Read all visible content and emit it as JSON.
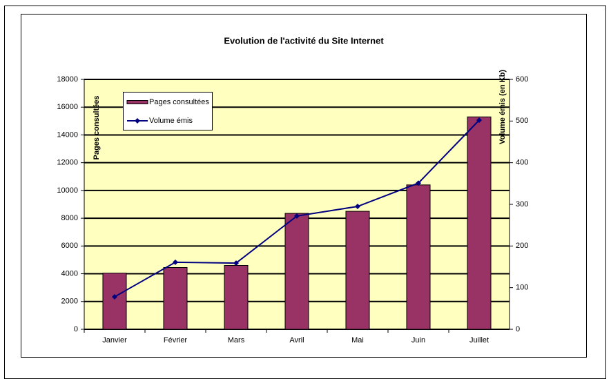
{
  "chart_data": {
    "type": "bar-line",
    "title": "Evolution de l'activité du Site Internet",
    "categories": [
      "Janvier",
      "Février",
      "Mars",
      "Avril",
      "Mai",
      "Juin",
      "Juillet"
    ],
    "series": [
      {
        "name": "Pages consultées",
        "type": "bar",
        "color": "#993366",
        "values": [
          4050,
          4450,
          4600,
          8350,
          8500,
          10400,
          15300
        ]
      },
      {
        "name": "Volume émis",
        "type": "line",
        "axis": "y2",
        "color": "#000080",
        "values": [
          78,
          161,
          159,
          272,
          295,
          351,
          502
        ]
      }
    ],
    "ylabel": "Pages consultées",
    "y2label": "Volume émis (en Kb)",
    "ylim": [
      0,
      18000
    ],
    "yticks": [
      0,
      2000,
      4000,
      6000,
      8000,
      10000,
      12000,
      14000,
      16000,
      18000
    ],
    "y2lim": [
      0,
      600
    ],
    "y2ticks": [
      0,
      100,
      200,
      300,
      400,
      500,
      600
    ],
    "grid": true,
    "legend": "top-left",
    "plot_background": "#ffffc0"
  }
}
